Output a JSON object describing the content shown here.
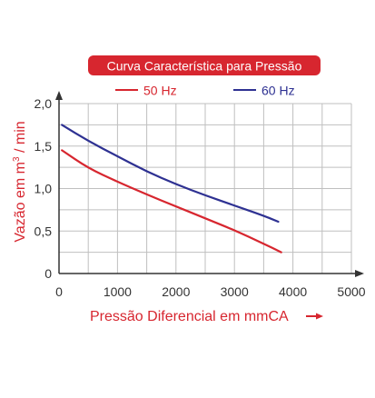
{
  "chart_data": {
    "type": "line",
    "title": "Curva Característica para Pressão",
    "xlabel": "Pressão Diferencial em mmCA",
    "ylabel_main": "Vazão em m",
    "ylabel_sup": "3",
    "ylabel_tail": " / min",
    "xlim": [
      0,
      5000
    ],
    "ylim": [
      0,
      2.0
    ],
    "x_ticks": [
      0,
      1000,
      2000,
      3000,
      4000,
      5000
    ],
    "x_tick_labels": [
      "0",
      "1000",
      "2000",
      "3000",
      "4000",
      "5000"
    ],
    "y_ticks": [
      0,
      0.5,
      1.0,
      1.5,
      2.0
    ],
    "y_tick_labels": [
      "0",
      "0,5",
      "1,0",
      "1,5",
      "2,0"
    ],
    "grid": true,
    "legend_position": "top",
    "series": [
      {
        "name": "50 Hz",
        "color": "#d7262f",
        "x": [
          50,
          500,
          1000,
          1500,
          2000,
          2500,
          3000,
          3500,
          3800
        ],
        "y": [
          1.45,
          1.24,
          1.08,
          0.93,
          0.79,
          0.65,
          0.51,
          0.35,
          0.25
        ]
      },
      {
        "name": "60 Hz",
        "color": "#2e3192",
        "x": [
          50,
          500,
          1000,
          1500,
          2000,
          2500,
          3000,
          3500,
          3750
        ],
        "y": [
          1.75,
          1.56,
          1.38,
          1.2,
          1.05,
          0.92,
          0.8,
          0.68,
          0.61
        ]
      }
    ],
    "colors": {
      "title_bg": "#d7262f",
      "title_text": "#ffffff",
      "axis": "#333333",
      "grid": "#bfbfbf",
      "label": "#d7262f"
    }
  }
}
